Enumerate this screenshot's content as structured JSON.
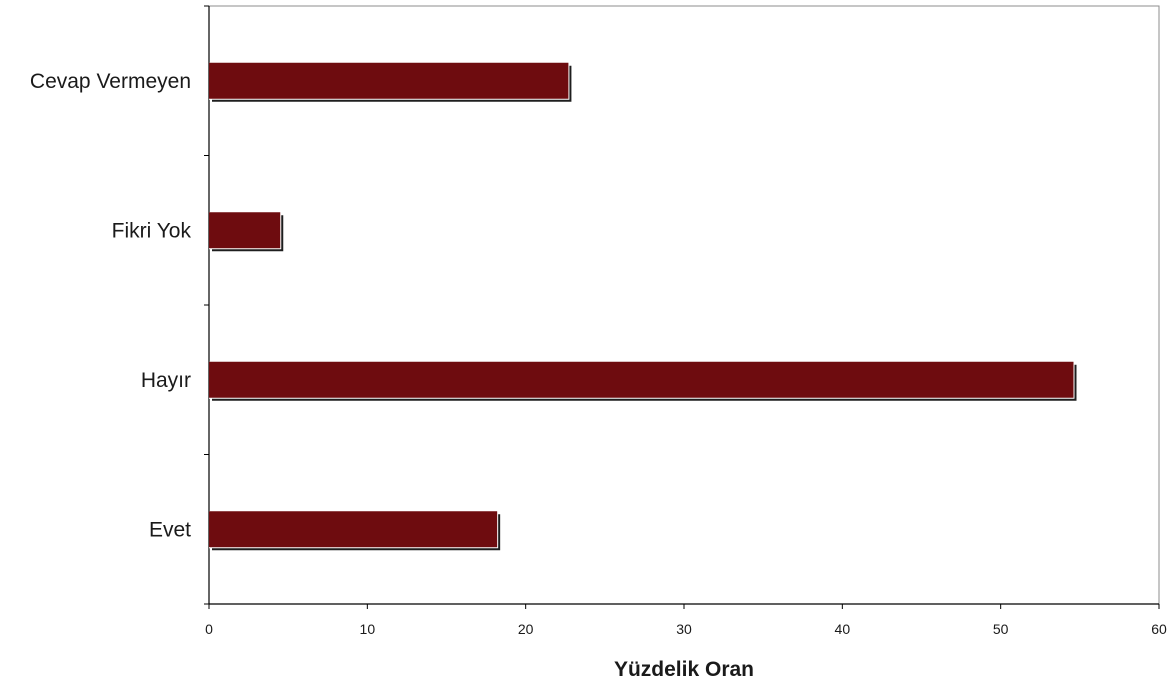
{
  "chart_data": {
    "type": "bar",
    "orientation": "horizontal",
    "categories": [
      "Evet",
      "Hayır",
      "Fikri Yok",
      "Cevap Vermeyen"
    ],
    "values": [
      18.2,
      54.6,
      4.5,
      22.7
    ],
    "xlabel": "Yüzdelik Oran",
    "ylabel": "",
    "xlim": [
      0,
      60
    ],
    "x_ticks": [
      "0",
      "10",
      "20",
      "30",
      "40",
      "50",
      "60"
    ],
    "grid": false,
    "bar_color": "#6e0c0f",
    "shadow_color": "#1e1e1e"
  }
}
